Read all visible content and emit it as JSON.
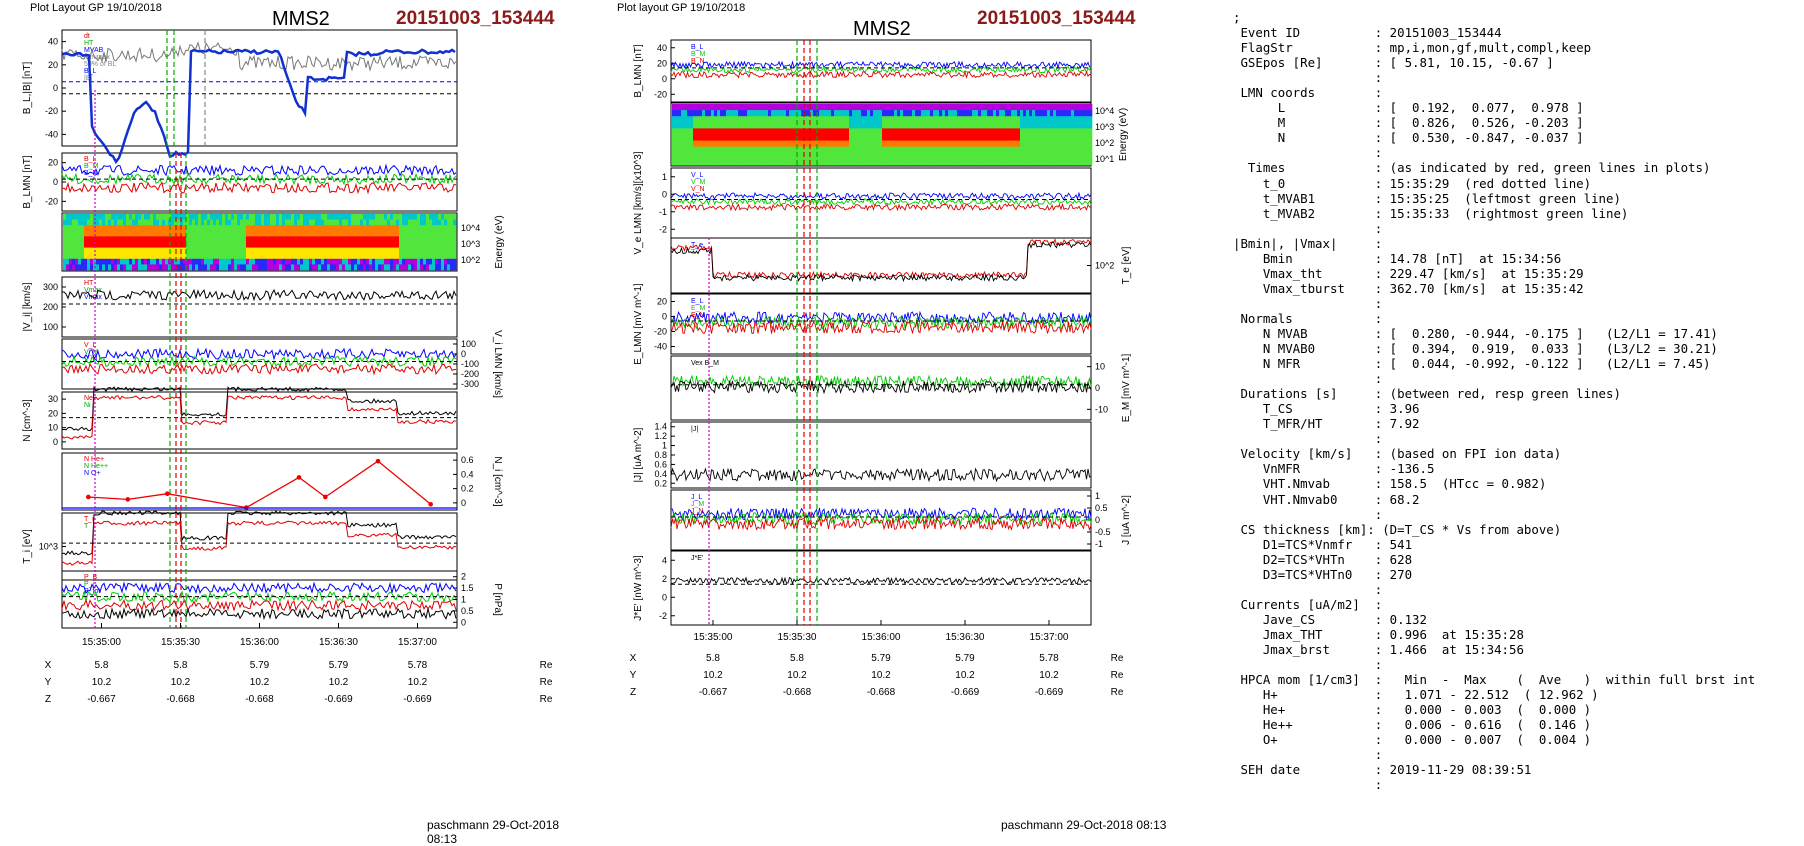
{
  "figures": [
    {
      "header_left": "Plot Layout GP 19/10/2018",
      "title": "MMS2",
      "event": "20151003_153444",
      "footer": "paschmann 29-Oct-2018 08:13",
      "time_ticks": [
        "15:35:00",
        "15:35:30",
        "15:36:00",
        "15:36:30",
        "15:37:00"
      ],
      "eph": [
        {
          "label": "X",
          "values": [
            "5.8",
            "5.8",
            "5.79",
            "5.79",
            "5.78"
          ],
          "unit": "Re"
        },
        {
          "label": "Y",
          "values": [
            "10.2",
            "10.2",
            "10.2",
            "10.2",
            "10.2"
          ],
          "unit": "Re"
        },
        {
          "label": "Z",
          "values": [
            "-0.667",
            "-0.668",
            "-0.668",
            "-0.669",
            "-0.669"
          ],
          "unit": "Re"
        }
      ]
    },
    {
      "header_left": "Plot layout GP 19/10/2018",
      "title": "MMS2",
      "event": "20151003_153444",
      "footer": "paschmann 29-Oct-2018 08:13",
      "time_ticks": [
        "15:35:00",
        "15:35:30",
        "15:36:00",
        "15:36:30",
        "15:37:00"
      ],
      "eph": [
        {
          "label": "X",
          "values": [
            "5.8",
            "5.8",
            "5.79",
            "5.79",
            "5.78"
          ],
          "unit": "Re"
        },
        {
          "label": "Y",
          "values": [
            "10.2",
            "10.2",
            "10.2",
            "10.2",
            "10.2"
          ],
          "unit": "Re"
        },
        {
          "label": "Z",
          "values": [
            "-0.667",
            "-0.668",
            "-0.668",
            "-0.669",
            "-0.669"
          ],
          "unit": "Re"
        }
      ]
    }
  ],
  "text_panel": ";\n Event ID          : 20151003_153444\n FlagStr           : mp,i,mon,gf,mult,compl,keep\n GSEpos [Re]       : [ 5.81, 10.15, -0.67 ]\n                   :\n LMN coords        :\n      L            : [  0.192,  0.077,  0.978 ]\n      M            : [  0.826,  0.526, -0.203 ]\n      N            : [  0.530, -0.847, -0.037 ]\n                   :\n  Times            : (as indicated by red, green lines in plots)\n    t_0            : 15:35:29  (red dotted line)\n    t_MVAB1        : 15:35:25  (leftmost green line)\n    t_MVAB2        : 15:35:33  (rightmost green line)\n                   :\n|Bmin|, |Vmax|     :\n    Bmin           : 14.78 [nT]  at 15:34:56\n    Vmax_tht       : 229.47 [km/s]  at 15:35:29\n    Vmax_tburst    : 362.70 [km/s]  at 15:35:42\n                   :\n Normals           :\n    N MVAB         : [  0.280, -0.944, -0.175 ]   (L2/L1 = 17.41)\n    N MVAB0        : [  0.394,  0.919,  0.033 ]   (L3/L2 = 30.21)\n    N MFR          : [  0.044, -0.992, -0.122 ]   (L2/L1 = 7.45)\n                   :\n Durations [s]     : (between red, resp green lines)\n    T_CS           : 3.96\n    T_MFR/HT       : 7.92\n                   :\n Velocity [km/s]   : (based on FPI ion data)\n    VnMFR          : -136.5\n    VHT.Nmvab      : 158.5  (HTcc = 0.982)\n    VHT.Nmvab0     : 68.2\n                   :\n CS thickness [km]: (D=T_CS * Vs from above)\n    D1=TCS*Vnmfr   : 541\n    D2=TCS*VHTn    : 628\n    D3=TCS*VHTn0   : 270\n                   :\n Currents [uA/m2]  :\n    Jave_CS        : 0.132\n    Jmax_THT       : 0.996  at 15:35:28\n    Jmax_brst      : 1.466  at 15:34:56\n                   :\n HPCA mom [1/cm3]  :   Min  -  Max    (  Ave   )  within full brst int\n    H+             :   1.071 - 22.512  ( 12.962 )\n    He+            :   0.000 - 0.003  (  0.000 )\n    He++           :   0.006 - 0.616  (  0.146 )\n    O+             :   0.000 - 0.007  (  0.004 )\n                   :\n SEH date          : 2019-11-29 08:39:51\n                   :",
  "chart_data": [
    {
      "type": "line",
      "figure": "left",
      "x_range": [
        "15:34:45",
        "15:37:15"
      ],
      "panels": [
        {
          "ylabel": "B_L,|B| [nT]",
          "yticks": [
            -40,
            -20,
            0,
            20,
            40
          ],
          "legend": [
            "dt",
            "HT",
            "MVAB",
            "Minimax",
            "50% of BL",
            "B_L",
            "|B|"
          ]
        },
        {
          "ylabel": "B_LMN [nT]",
          "yticks": [
            -20,
            0,
            20
          ],
          "legend": [
            "B_L",
            "B_M",
            "B_N"
          ]
        },
        {
          "ylabel": "Energy (eV)",
          "type": "heatmap",
          "yticks": [
            "10^2",
            "10^3",
            "10^4"
          ]
        },
        {
          "ylabel": "|V_i| [km/s]",
          "yticks": [
            100,
            200,
            300
          ],
          "legend": [
            "HT",
            "Vmax",
            "Vmax"
          ]
        },
        {
          "ylabel": "V_i LMN [km/s]",
          "yticks": [
            -300,
            -200,
            -100,
            0,
            100
          ],
          "legend": [
            "V_L",
            "V_M",
            "V_N"
          ]
        },
        {
          "ylabel": "N [cm^-3]",
          "yticks": [
            0,
            10,
            20,
            30
          ],
          "legend": [
            "Ne",
            "Ni"
          ]
        },
        {
          "ylabel": "N_i [cm^-3]",
          "yticks": [
            0.0,
            0.2,
            0.4,
            0.6
          ],
          "legend": [
            "N He+",
            "N He++",
            "N O+"
          ],
          "series": [
            {
              "name": "N He++",
              "x": [
                "15:34:55",
                "15:35:10",
                "15:35:25",
                "15:35:55",
                "15:36:15",
                "15:36:25",
                "15:36:45",
                "15:37:05"
              ],
              "values": [
                0.16,
                0.13,
                0.2,
                0.03,
                0.4,
                0.16,
                0.6,
                0.07
              ]
            }
          ]
        },
        {
          "ylabel": "T_i [eV]",
          "yticks": [
            "10^3"
          ],
          "legend": [
            "T_i",
            "T"
          ]
        },
        {
          "ylabel": "P [nPa]",
          "yticks": [
            0.0,
            0.5,
            1.0,
            1.5,
            2.0
          ],
          "legend": [
            "P_B",
            "P_i",
            "P_tot"
          ]
        }
      ]
    },
    {
      "type": "line",
      "figure": "right",
      "x_range": [
        "15:34:45",
        "15:37:15"
      ],
      "panels": [
        {
          "ylabel": "B_LMN [nT]",
          "yticks": [
            -20,
            0,
            20,
            40
          ],
          "legend": [
            "B_L",
            "B_M",
            "B_N"
          ]
        },
        {
          "ylabel": "Energy (eV)",
          "type": "heatmap",
          "yticks": [
            "10^1",
            "10^2",
            "10^3",
            "10^4"
          ]
        },
        {
          "ylabel": "V_e LMN [km/s][x10^3]",
          "yticks": [
            -2,
            -1,
            0,
            1
          ],
          "legend": [
            "V_L",
            "V_M",
            "V_N"
          ]
        },
        {
          "ylabel": "T_e [eV]",
          "yticks": [
            "10^2"
          ],
          "legend": [
            "T_e",
            "T"
          ]
        },
        {
          "ylabel": "E_LMN [mV m^-1]",
          "yticks": [
            -40,
            -20,
            0,
            20
          ],
          "legend": [
            "E_L",
            "E_M",
            "E_N"
          ]
        },
        {
          "ylabel": "E_M [mV m^-1]",
          "yticks": [
            -10,
            0,
            10
          ],
          "legend": [
            "Vex B_M"
          ]
        },
        {
          "ylabel": "|J| [uA m^-2]",
          "yticks": [
            0.2,
            0.4,
            0.6,
            0.8,
            1.0,
            1.2,
            1.4
          ],
          "legend": [
            "|J|"
          ]
        },
        {
          "ylabel": "J [uA m^-2]",
          "yticks": [
            -1.0,
            -0.5,
            0.0,
            0.5,
            1.0
          ],
          "legend": [
            "J_L",
            "J_M",
            "J_N"
          ]
        },
        {
          "ylabel": "J*E' [nW m^-3]",
          "yticks": [
            -2,
            0,
            2,
            4
          ],
          "legend": [
            "J*E'"
          ]
        }
      ]
    }
  ]
}
